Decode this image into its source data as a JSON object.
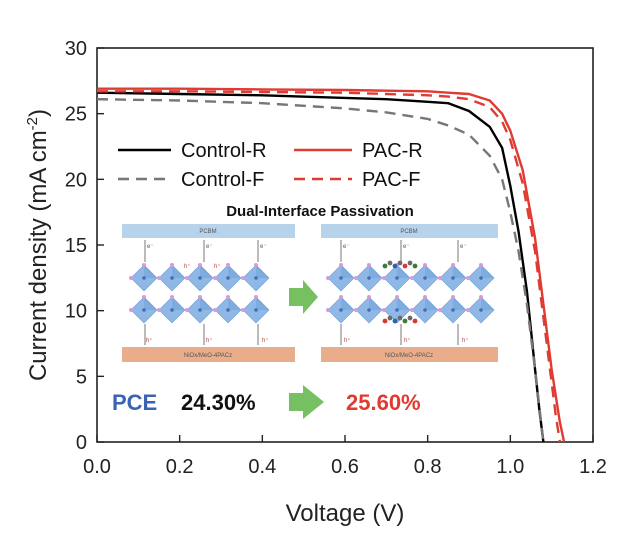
{
  "chart_data": {
    "type": "line",
    "xlabel": "Voltage (V)",
    "ylabel_main": "Current density (mA cm",
    "ylabel_sup": "-2",
    "ylabel_close": ")",
    "xlim": [
      0.0,
      1.2
    ],
    "ylim": [
      0,
      30
    ],
    "x_ticks": [
      "0.0",
      "0.2",
      "0.4",
      "0.6",
      "0.8",
      "1.0",
      "1.2"
    ],
    "y_ticks": [
      "0",
      "5",
      "10",
      "15",
      "20",
      "25",
      "30"
    ],
    "grid": false,
    "legend_position": "middle-left",
    "series": [
      {
        "name": "Control-R",
        "color": "#000000",
        "dash": "solid",
        "points": [
          [
            0.0,
            26.6
          ],
          [
            0.2,
            26.5
          ],
          [
            0.4,
            26.4
          ],
          [
            0.6,
            26.2
          ],
          [
            0.7,
            26.1
          ],
          [
            0.8,
            25.9
          ],
          [
            0.85,
            25.8
          ],
          [
            0.9,
            25.2
          ],
          [
            0.95,
            24.0
          ],
          [
            0.98,
            22.4
          ],
          [
            1.0,
            19.5
          ],
          [
            1.02,
            16.0
          ],
          [
            1.04,
            11.5
          ],
          [
            1.05,
            8.5
          ],
          [
            1.06,
            5.5
          ],
          [
            1.07,
            2.5
          ],
          [
            1.08,
            0.0
          ]
        ]
      },
      {
        "name": "Control-F",
        "color": "#777777",
        "dash": "dashed",
        "points": [
          [
            0.0,
            26.1
          ],
          [
            0.2,
            26.0
          ],
          [
            0.4,
            25.8
          ],
          [
            0.6,
            25.4
          ],
          [
            0.7,
            25.1
          ],
          [
            0.8,
            24.6
          ],
          [
            0.85,
            24.1
          ],
          [
            0.9,
            23.4
          ],
          [
            0.95,
            21.8
          ],
          [
            0.98,
            20.0
          ],
          [
            1.0,
            17.5
          ],
          [
            1.02,
            14.5
          ],
          [
            1.04,
            10.5
          ],
          [
            1.06,
            5.5
          ],
          [
            1.07,
            2.7
          ],
          [
            1.08,
            0.0
          ]
        ]
      },
      {
        "name": "PAC-R",
        "color": "#e03b32",
        "dash": "solid",
        "points": [
          [
            0.0,
            26.9
          ],
          [
            0.2,
            26.9
          ],
          [
            0.4,
            26.85
          ],
          [
            0.6,
            26.8
          ],
          [
            0.7,
            26.75
          ],
          [
            0.8,
            26.7
          ],
          [
            0.85,
            26.6
          ],
          [
            0.9,
            26.5
          ],
          [
            0.95,
            26.0
          ],
          [
            0.98,
            25.0
          ],
          [
            1.0,
            23.7
          ],
          [
            1.03,
            20.7
          ],
          [
            1.06,
            15.5
          ],
          [
            1.08,
            10.5
          ],
          [
            1.1,
            5.5
          ],
          [
            1.12,
            1.5
          ],
          [
            1.13,
            0.0
          ]
        ]
      },
      {
        "name": "PAC-F",
        "color": "#e03b32",
        "dash": "dashed",
        "points": [
          [
            0.0,
            26.7
          ],
          [
            0.2,
            26.7
          ],
          [
            0.4,
            26.65
          ],
          [
            0.6,
            26.6
          ],
          [
            0.7,
            26.5
          ],
          [
            0.8,
            26.4
          ],
          [
            0.85,
            26.3
          ],
          [
            0.9,
            26.1
          ],
          [
            0.95,
            25.5
          ],
          [
            0.98,
            24.4
          ],
          [
            1.0,
            23.0
          ],
          [
            1.03,
            19.7
          ],
          [
            1.06,
            14.5
          ],
          [
            1.08,
            9.5
          ],
          [
            1.1,
            4.5
          ],
          [
            1.11,
            2.0
          ],
          [
            1.12,
            0.0
          ]
        ]
      }
    ]
  },
  "inset": {
    "title": "Dual-Interface Passivation",
    "top_layer": "PCBM",
    "bottom_layer": "NiOx/MeO-4PACz",
    "electron": "e⁻",
    "hole": "h⁺"
  },
  "pce": {
    "label": "PCE",
    "control_value": "24.30%",
    "pac_value": "25.60%",
    "label_color": "#3b63b3",
    "control_color": "#111111",
    "pac_color": "#e03b32",
    "arrow_color": "#77c062"
  },
  "colors": {
    "crystal": "#8fb8e6",
    "crystal_dark": "#6a9ed6",
    "top_layer": "#b7d3ec",
    "bottom_layer": "#e9ad8b",
    "node": "#d89ad6"
  }
}
